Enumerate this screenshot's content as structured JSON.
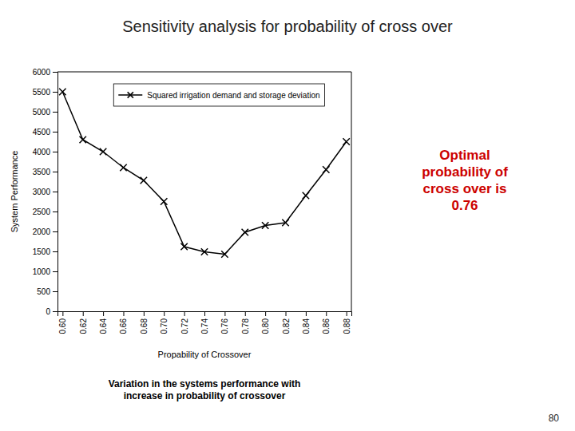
{
  "chart_data": {
    "type": "line",
    "title": "Sensitivity analysis for probability of cross over",
    "subtitle": "Variation in the systems performance with\nincrease in probability of crossover",
    "xlabel": "Propability of Crossover",
    "ylabel": "System Performance",
    "x": [
      0.6,
      0.62,
      0.64,
      0.66,
      0.68,
      0.7,
      0.72,
      0.74,
      0.76,
      0.78,
      0.8,
      0.82,
      0.84,
      0.86,
      0.88
    ],
    "series": [
      {
        "name": "Squared irrigation demand and storage deviation",
        "color": "black",
        "marker": "x",
        "line_style": "solid",
        "values": [
          5500,
          4300,
          4000,
          3600,
          3280,
          2750,
          1620,
          1490,
          1430,
          1980,
          2150,
          2220,
          2900,
          3550,
          4250
        ]
      }
    ],
    "xlim": [
      0.595,
      0.885
    ],
    "ylim": [
      0,
      6000
    ],
    "xticks": [
      {
        "value": 0.6,
        "label": "0.60"
      },
      0.62,
      0.64,
      0.66,
      0.68,
      {
        "value": 0.7,
        "label": "0.70"
      },
      0.72,
      0.74,
      0.76,
      0.78,
      {
        "value": 0.8,
        "label": "0.80"
      },
      0.82,
      0.84,
      0.86,
      0.88
    ],
    "yticks": [
      0,
      500,
      1000,
      1500,
      2000,
      2500,
      3000,
      3500,
      4000,
      4500,
      5000,
      5500,
      6000
    ],
    "grid": false,
    "legend": "top",
    "annotations": [
      {
        "text": "Optimal\nprobability of\ncross over is\n0.76",
        "color": "#cc0000"
      },
      {
        "text": "80"
      }
    ]
  }
}
